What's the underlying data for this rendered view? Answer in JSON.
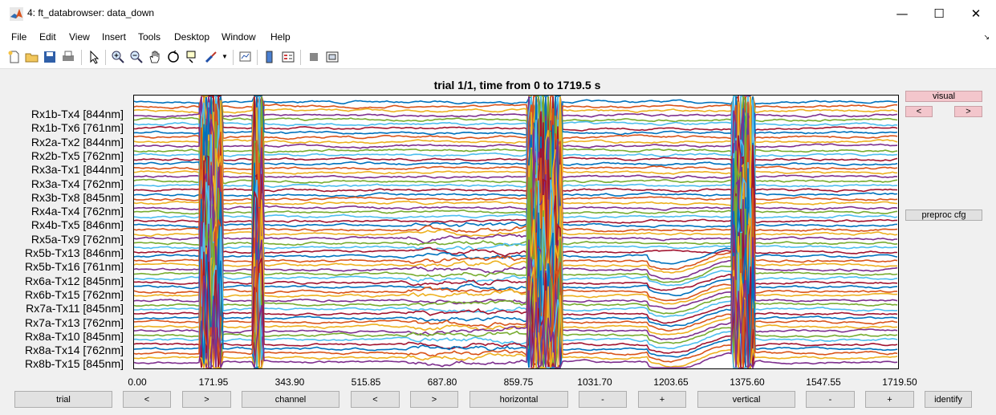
{
  "window": {
    "title": "4: ft_databrowser: data_down"
  },
  "menu": [
    "File",
    "Edit",
    "View",
    "Insert",
    "Tools",
    "Desktop",
    "Window",
    "Help"
  ],
  "plot": {
    "title": "trial 1/1, time from 0 to 1719.5 s",
    "channels": [
      "Rx1b-Tx4 [844nm]",
      "Rx1b-Tx6 [761nm]",
      "Rx2a-Tx2 [844nm]",
      "Rx2b-Tx5 [762nm]",
      "Rx3a-Tx1 [844nm]",
      "Rx3a-Tx4 [762nm]",
      "Rx3b-Tx8 [845nm]",
      "Rx4a-Tx4 [762nm]",
      "Rx4b-Tx5 [846nm]",
      "Rx5a-Tx9 [762nm]",
      "Rx5b-Tx13 [846nm]",
      "Rx5b-Tx16 [761nm]",
      "Rx6a-Tx12 [845nm]",
      "Rx6b-Tx15 [762nm]",
      "Rx7a-Tx11 [845nm]",
      "Rx7a-Tx13 [762nm]",
      "Rx8a-Tx10 [845nm]",
      "Rx8a-Tx14 [762nm]",
      "Rx8b-Tx15 [845nm]"
    ],
    "xticks": [
      "0.00",
      "171.95",
      "343.90",
      "515.85",
      "687.80",
      "859.75",
      "1031.70",
      "1203.65",
      "1375.60",
      "1547.55",
      "1719.50"
    ],
    "xlim": [
      0,
      1719.5
    ],
    "series_colors": [
      "#0072bd",
      "#d95319",
      "#edb120",
      "#7e2f8e",
      "#77ac30",
      "#4dbeee",
      "#a2142f"
    ],
    "artifact_windows_s": [
      [
        150,
        200
      ],
      [
        270,
        290
      ],
      [
        888,
        960
      ],
      [
        1345,
        1395
      ]
    ]
  },
  "buttons": {
    "visual": "visual",
    "prev": "<",
    "next": ">",
    "preproc": "preproc cfg",
    "bottom": [
      "trial",
      "<",
      ">",
      "channel",
      "<",
      ">",
      "horizontal",
      "-",
      "+",
      "vertical",
      "-",
      "+",
      "identify"
    ]
  }
}
